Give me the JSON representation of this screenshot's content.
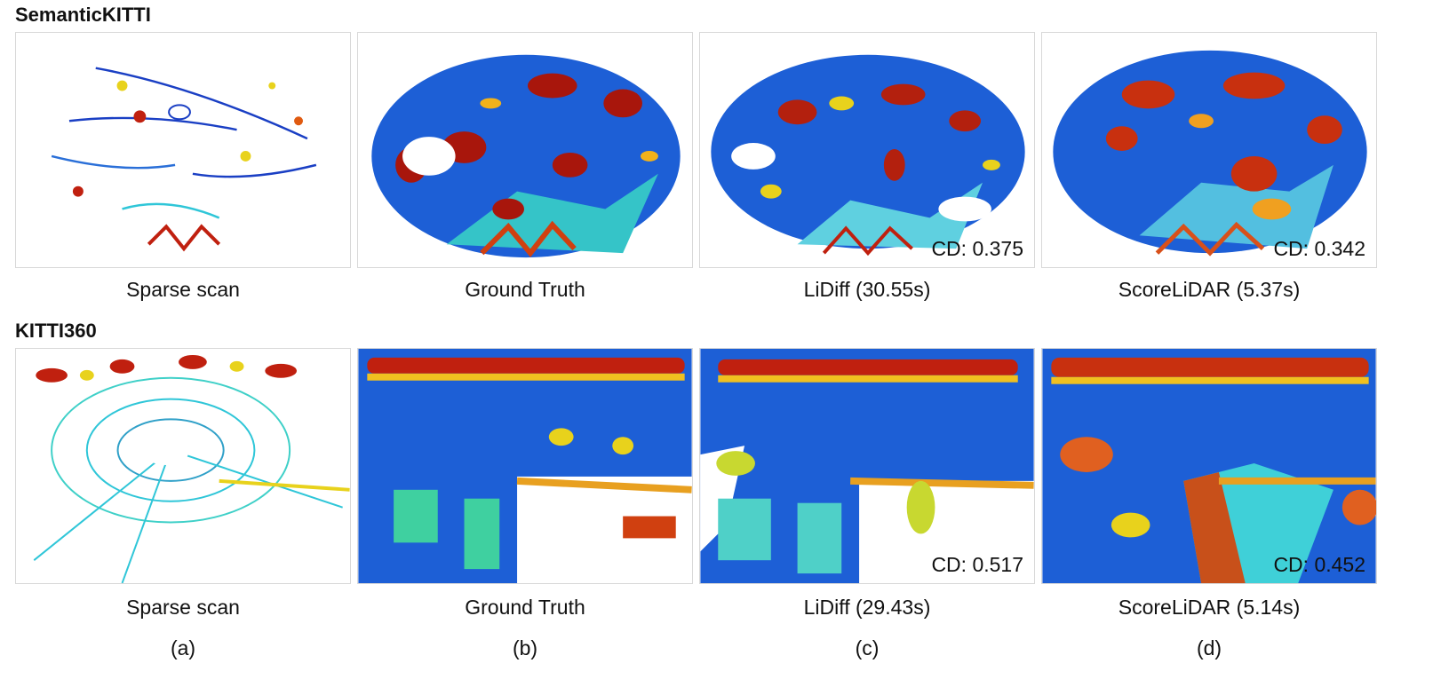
{
  "rows": [
    {
      "title": "SemanticKITTI",
      "panels": [
        {
          "caption": "Sparse scan",
          "cd": ""
        },
        {
          "caption": "Ground Truth",
          "cd": ""
        },
        {
          "caption": "LiDiff (30.55s)",
          "cd": "CD: 0.375"
        },
        {
          "caption": "ScoreLiDAR (5.37s)",
          "cd": "CD: 0.342"
        }
      ]
    },
    {
      "title": "KITTI360",
      "panels": [
        {
          "caption": "Sparse scan",
          "cd": ""
        },
        {
          "caption": "Ground Truth",
          "cd": ""
        },
        {
          "caption": "LiDiff (29.43s)",
          "cd": "CD: 0.517"
        },
        {
          "caption": "ScoreLiDAR (5.14s)",
          "cd": "CD: 0.452"
        }
      ]
    }
  ],
  "subfigure_labels": [
    "(a)",
    "(b)",
    "(c)",
    "(d)"
  ],
  "colors": {
    "near_blue": "#1a3fc4",
    "mid_cyan": "#2fc6d8",
    "mid_yellow": "#e8d21c",
    "far_red": "#c0200f",
    "border": "#d8d8d8"
  }
}
